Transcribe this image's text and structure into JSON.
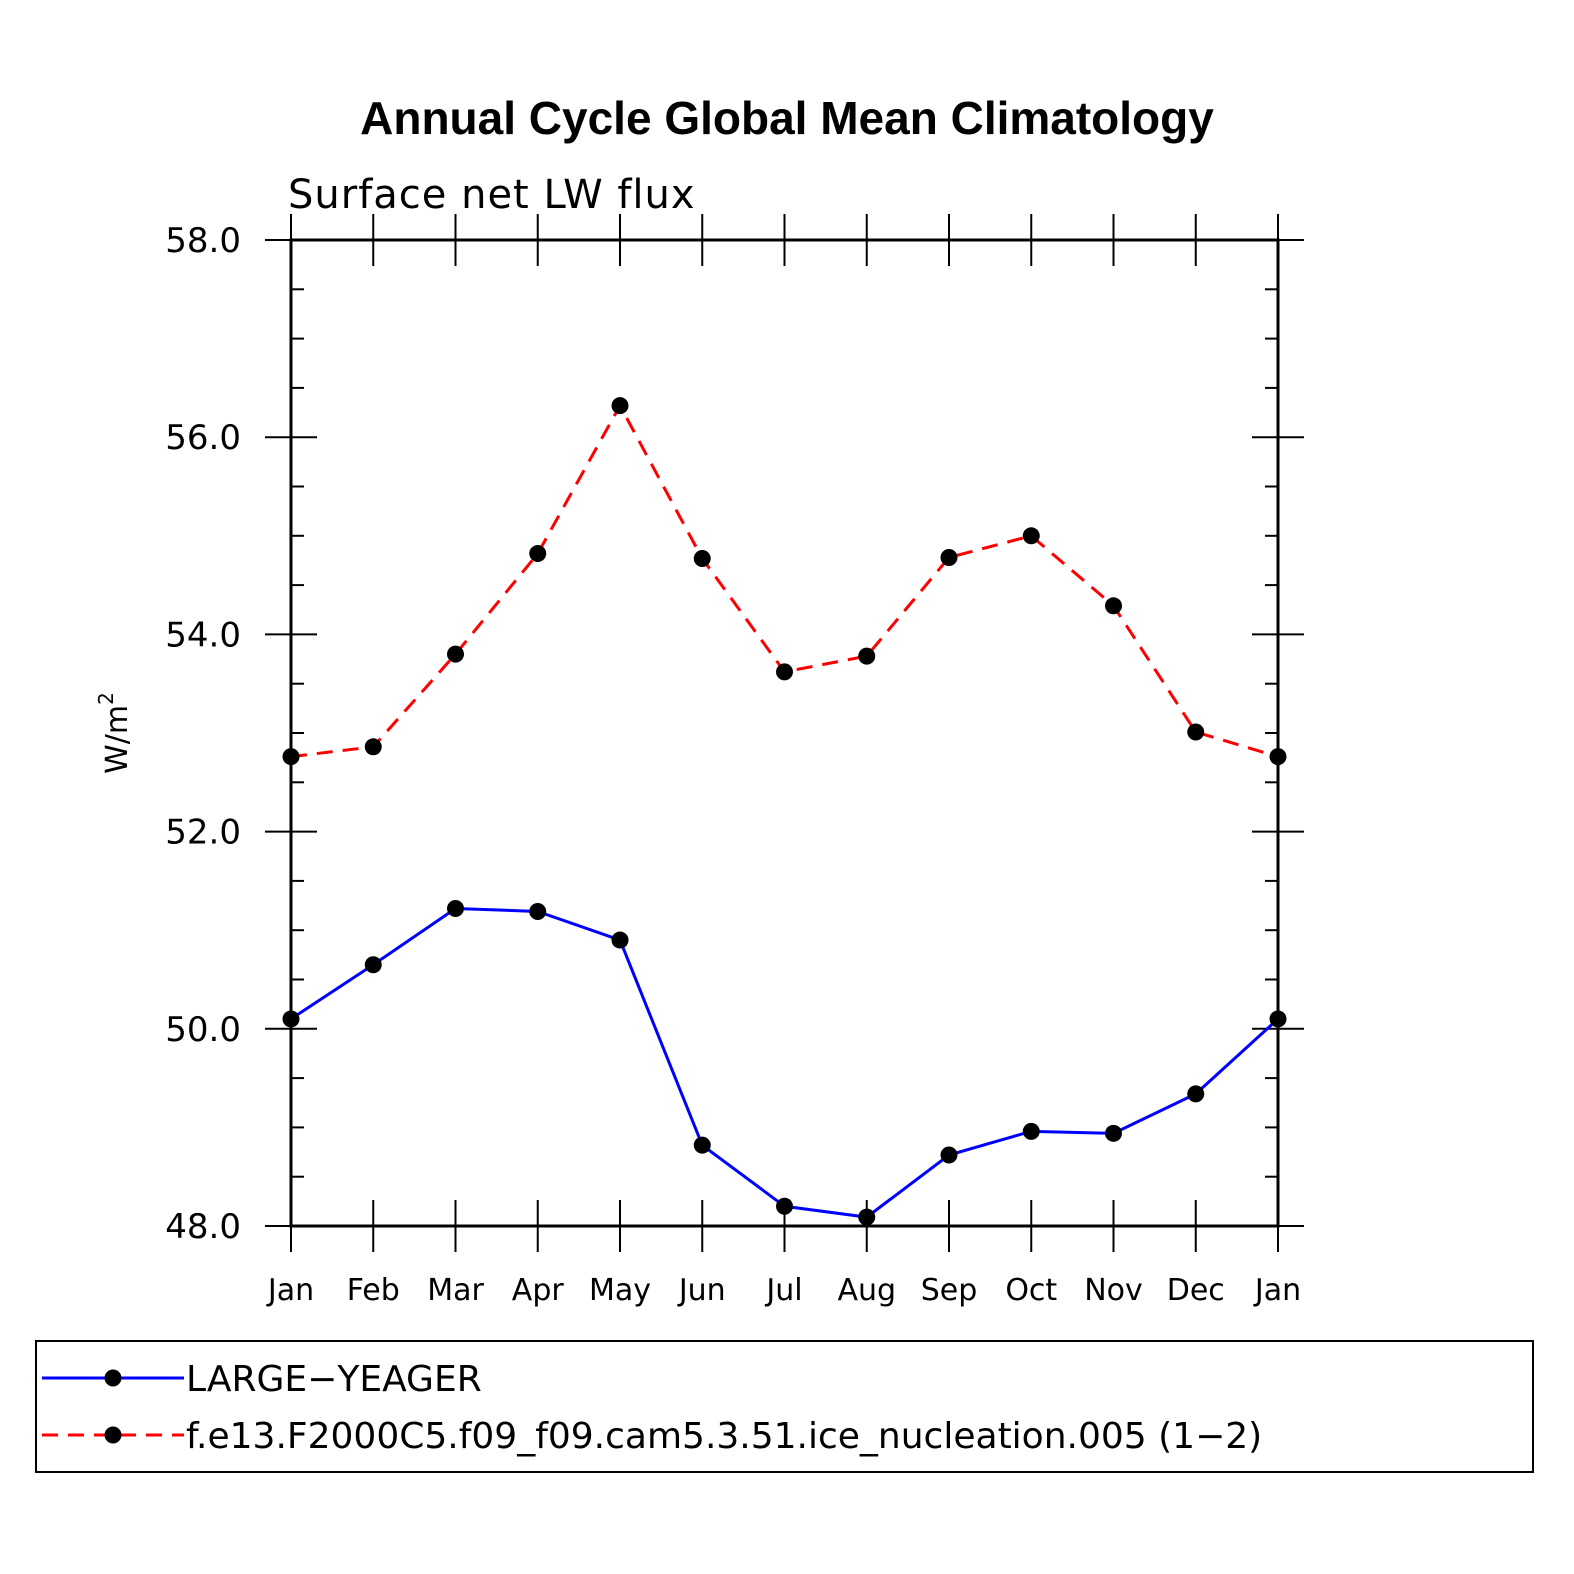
{
  "chart_data": {
    "type": "line",
    "title": "Annual Cycle Global Mean Climatology",
    "subtitle": "Surface net LW flux",
    "ylabel": "W/m",
    "ylabel_superscript": "2",
    "xlabel": "",
    "ylim": [
      48.0,
      58.0
    ],
    "yticks": [
      "48.0",
      "50.0",
      "52.0",
      "54.0",
      "56.0",
      "58.0"
    ],
    "categories": [
      "Jan",
      "Feb",
      "Mar",
      "Apr",
      "May",
      "Jun",
      "Jul",
      "Aug",
      "Sep",
      "Oct",
      "Nov",
      "Dec",
      "Jan"
    ],
    "series": [
      {
        "name": "LARGE−YEAGER",
        "color": "#0000ff",
        "dash": "solid",
        "values": [
          50.1,
          50.65,
          51.22,
          51.19,
          50.9,
          48.82,
          48.2,
          48.09,
          48.72,
          48.96,
          48.94,
          49.34,
          50.1
        ]
      },
      {
        "name": "f.e13.F2000C5.f09_f09.cam5.3.51.ice_nucleation.005 (1−2)",
        "color": "#ff0000",
        "dash": "dashed",
        "values": [
          52.76,
          52.86,
          53.8,
          54.82,
          56.32,
          54.77,
          53.62,
          53.78,
          54.78,
          55.0,
          54.29,
          53.01,
          52.76
        ]
      }
    ],
    "marker_color": "#000000",
    "legend_position": "bottom"
  }
}
